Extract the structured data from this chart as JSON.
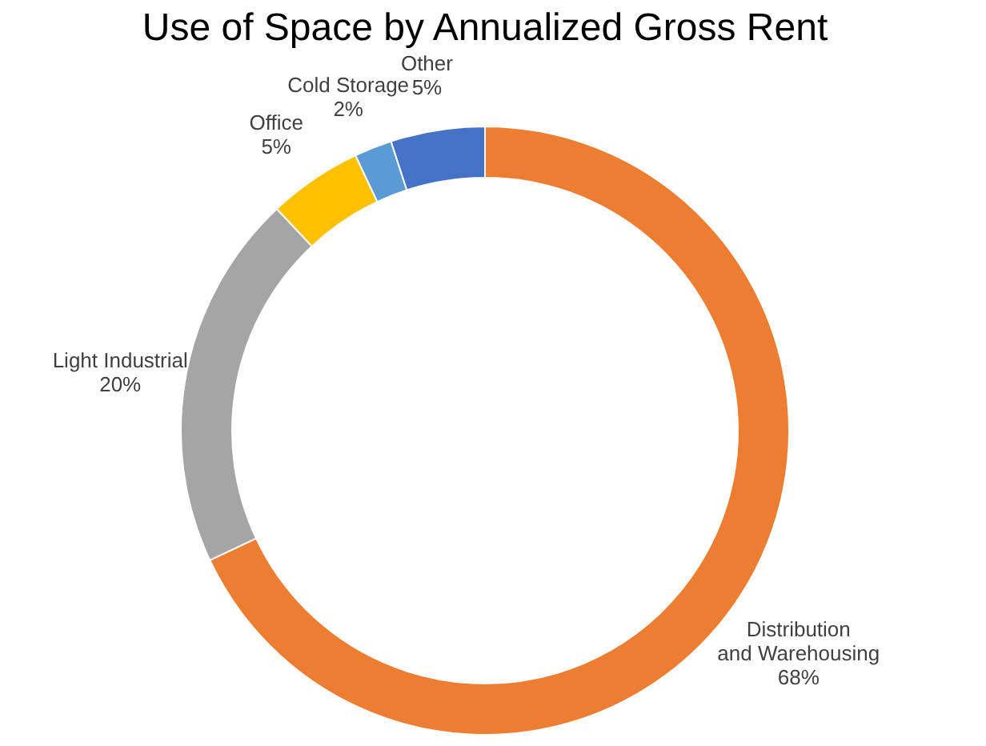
{
  "chart_data": {
    "type": "donut",
    "title": "Use of Space by Annualized Gross Rent",
    "categories": [
      "Distribution and Warehousing",
      "Light Industrial",
      "Office",
      "Cold Storage",
      "Other"
    ],
    "values": [
      68,
      20,
      5,
      2,
      5
    ],
    "colors": [
      "#ed7d31",
      "#a5a5a5",
      "#ffc000",
      "#5b9bd5",
      "#4472c4"
    ],
    "value_labels": [
      "68%",
      "20%",
      "5%",
      "2%",
      "5%"
    ],
    "legend": false
  }
}
